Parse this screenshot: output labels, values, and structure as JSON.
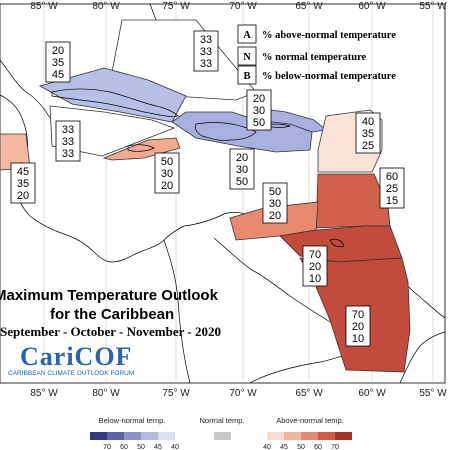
{
  "map": {
    "title_line1": "Maximum Temperature Outlook",
    "title_line2": "for the Caribbean",
    "period": "September - October - November - 2020",
    "logo_name": "CariCOF",
    "logo_sub": "CARIBBEAN CLIMATE OUTLOOK FORUM",
    "top_axis": [
      "85° W",
      "80° W",
      "75° W",
      "70° W",
      "65° W",
      "60° W",
      "55° W"
    ],
    "bottom_axis": [
      "85° W",
      "80° W",
      "75° W",
      "70° W",
      "65° W",
      "60° W",
      "55° W"
    ]
  },
  "legend": {
    "rows": [
      {
        "key": "A",
        "text": "% above-normal temperature"
      },
      {
        "key": "N",
        "text": "% normal temperature"
      },
      {
        "key": "B",
        "text": "% below-normal temperature"
      }
    ]
  },
  "regions": [
    {
      "name": "bahamas",
      "values": [
        "33",
        "33",
        "33"
      ],
      "color": "#ffffff"
    },
    {
      "name": "cuba",
      "values": [
        "20",
        "35",
        "45"
      ],
      "color": "#b8bfe6"
    },
    {
      "name": "cayman",
      "values": [
        "33",
        "33",
        "33"
      ],
      "color": "#ffffff"
    },
    {
      "name": "hispaniola",
      "values": [
        "20",
        "30",
        "50"
      ],
      "color": "#a9b0e0"
    },
    {
      "name": "jamaica",
      "values": [
        "50",
        "30",
        "20"
      ],
      "color": "#f2aa90"
    },
    {
      "name": "puerto-rico",
      "values": [
        "20",
        "30",
        "50"
      ],
      "color": "#a9b0e0"
    },
    {
      "name": "leeward-islands",
      "values": [
        "40",
        "35",
        "25"
      ],
      "color": "#fbe3da"
    },
    {
      "name": "belize",
      "values": [
        "45",
        "35",
        "20"
      ],
      "color": "#f4b8a2"
    },
    {
      "name": "windward-islands",
      "values": [
        "60",
        "25",
        "15"
      ],
      "color": "#d2614a"
    },
    {
      "name": "abc-islands",
      "values": [
        "50",
        "30",
        "20"
      ],
      "color": "#e88a70"
    },
    {
      "name": "trinidad-guyana",
      "values": [
        "70",
        "20",
        "10"
      ],
      "color": "#c34b3b"
    },
    {
      "name": "suriname-guiana",
      "values": [
        "70",
        "20",
        "10"
      ],
      "color": "#c34b3b"
    }
  ],
  "colorbar": {
    "below_label": "Below-normal temp.",
    "normal_label": "Normal temp.",
    "above_label": "Above-normal temp.",
    "below_ticks": [
      "70",
      "60",
      "50",
      "45",
      "40"
    ],
    "above_ticks": [
      "40",
      "45",
      "50",
      "60",
      "70"
    ],
    "below_colors": [
      "#2f3a80",
      "#5a64a8",
      "#8a92c9",
      "#b4bae0",
      "#dcdff2"
    ],
    "normal_color": "#c8c8c8",
    "above_colors": [
      "#f7dcd3",
      "#f1b5a0",
      "#e38a72",
      "#cf5b45",
      "#a8312a"
    ]
  }
}
